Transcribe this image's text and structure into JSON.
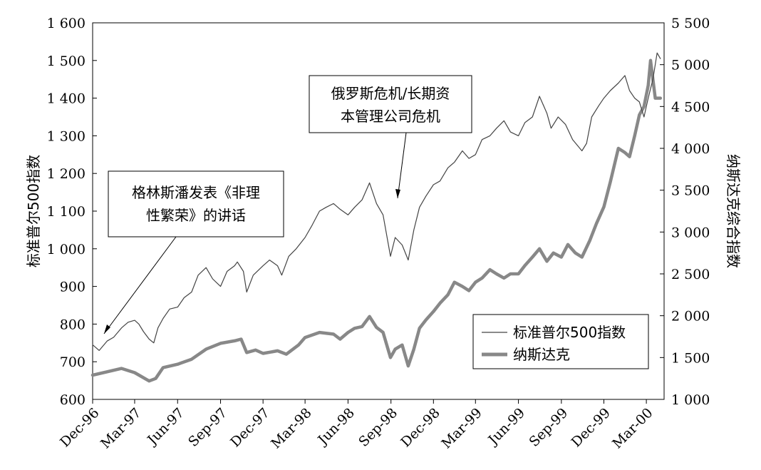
{
  "chart_data": {
    "type": "line",
    "ylabel_left": "标准普尔500指数",
    "ylabel_right": "纳斯达克综合指数",
    "y_left_range": [
      600,
      1600
    ],
    "y_right_range": [
      1000,
      5500
    ],
    "y_left_ticks": [
      "600",
      "700",
      "800",
      "900",
      "1 000",
      "1 100",
      "1 200",
      "1 300",
      "1 400",
      "1 500",
      "1 600"
    ],
    "y_right_ticks": [
      "1 000",
      "1 500",
      "2 000",
      "2 500",
      "3 000",
      "3 500",
      "4 000",
      "4 500",
      "5 000",
      "5 500"
    ],
    "x_ticks": [
      "Dec-96",
      "Mar-97",
      "Jun-97",
      "Sep-97",
      "Dec-97",
      "Mar-98",
      "Jun-98",
      "Sep-98",
      "Dec-98",
      "Mar-99",
      "Jun-99",
      "Sep-99",
      "Dec-99",
      "Mar-00"
    ],
    "legend": {
      "placement": "lower-right",
      "entries": [
        "标准普尔500指数",
        "纳斯达克"
      ]
    },
    "annotations": [
      {
        "lines": [
          "格林斯潘发表《非理",
          "性繁荣》的讲话"
        ],
        "date": "1996-12-05"
      },
      {
        "lines": [
          "俄罗斯危机/长期资",
          "本管理公司危机"
        ],
        "date": "1998-10-01"
      }
    ],
    "series": [
      {
        "name": "标准普尔500指数",
        "axis": "left",
        "x": [
          "1996-12-01",
          "1996-12-15",
          "1997-01-01",
          "1997-01-15",
          "1997-02-01",
          "1997-02-15",
          "1997-03-01",
          "1997-03-10",
          "1997-03-20",
          "1997-04-01",
          "1997-04-11",
          "1997-04-20",
          "1997-05-01",
          "1997-05-15",
          "1997-06-01",
          "1997-06-15",
          "1997-07-01",
          "1997-07-15",
          "1997-08-01",
          "1997-08-15",
          "1997-09-01",
          "1997-09-15",
          "1997-10-01",
          "1997-10-07",
          "1997-10-20",
          "1997-10-27",
          "1997-11-10",
          "1997-12-01",
          "1997-12-15",
          "1998-01-01",
          "1998-01-10",
          "1998-01-25",
          "1998-02-10",
          "1998-03-01",
          "1998-03-15",
          "1998-04-01",
          "1998-04-15",
          "1998-05-01",
          "1998-05-15",
          "1998-06-01",
          "1998-06-15",
          "1998-07-01",
          "1998-07-17",
          "1998-08-01",
          "1998-08-15",
          "1998-08-31",
          "1998-09-10",
          "1998-09-25",
          "1998-10-08",
          "1998-10-20",
          "1998-11-01",
          "1998-11-15",
          "1998-12-01",
          "1998-12-15",
          "1999-01-01",
          "1999-01-15",
          "1999-02-01",
          "1999-02-15",
          "1999-03-01",
          "1999-03-15",
          "1999-04-01",
          "1999-04-15",
          "1999-05-01",
          "1999-05-15",
          "1999-06-01",
          "1999-06-15",
          "1999-07-01",
          "1999-07-16",
          "1999-08-01",
          "1999-08-10",
          "1999-08-25",
          "1999-09-10",
          "1999-09-25",
          "1999-10-15",
          "1999-10-25",
          "1999-11-05",
          "1999-11-20",
          "1999-12-01",
          "1999-12-15",
          "2000-01-01",
          "2000-01-15",
          "2000-01-25",
          "2000-02-05",
          "2000-02-15",
          "2000-02-25",
          "2000-03-05",
          "2000-03-15",
          "2000-03-24",
          "2000-03-31"
        ],
        "values": [
          745,
          730,
          755,
          765,
          790,
          805,
          810,
          800,
          780,
          760,
          750,
          790,
          815,
          840,
          845,
          870,
          885,
          930,
          950,
          920,
          900,
          940,
          955,
          965,
          940,
          885,
          930,
          955,
          970,
          955,
          930,
          980,
          1000,
          1030,
          1060,
          1100,
          1110,
          1120,
          1105,
          1090,
          1110,
          1130,
          1175,
          1120,
          1090,
          980,
          1030,
          1010,
          970,
          1050,
          1110,
          1140,
          1170,
          1180,
          1215,
          1230,
          1260,
          1240,
          1250,
          1290,
          1300,
          1320,
          1340,
          1310,
          1300,
          1335,
          1350,
          1405,
          1360,
          1320,
          1350,
          1330,
          1290,
          1260,
          1280,
          1350,
          1380,
          1400,
          1420,
          1440,
          1460,
          1420,
          1400,
          1390,
          1350,
          1400,
          1450,
          1520,
          1505
        ]
      },
      {
        "name": "纳斯达克",
        "axis": "right",
        "x": [
          "1996-12-01",
          "1997-01-01",
          "1997-02-01",
          "1997-03-01",
          "1997-04-01",
          "1997-04-15",
          "1997-05-01",
          "1997-06-01",
          "1997-07-01",
          "1997-08-01",
          "1997-09-01",
          "1997-10-01",
          "1997-10-15",
          "1997-10-27",
          "1997-11-15",
          "1997-12-01",
          "1998-01-01",
          "1998-01-20",
          "1998-02-15",
          "1998-03-01",
          "1998-04-01",
          "1998-05-01",
          "1998-05-15",
          "1998-06-01",
          "1998-06-15",
          "1998-07-01",
          "1998-07-17",
          "1998-08-01",
          "1998-08-15",
          "1998-08-31",
          "1998-09-10",
          "1998-09-25",
          "1998-10-08",
          "1998-10-20",
          "1998-11-01",
          "1998-11-15",
          "1998-12-01",
          "1998-12-15",
          "1999-01-01",
          "1999-01-15",
          "1999-02-01",
          "1999-02-15",
          "1999-03-01",
          "1999-03-15",
          "1999-04-01",
          "1999-04-15",
          "1999-05-01",
          "1999-05-15",
          "1999-06-01",
          "1999-06-15",
          "1999-07-01",
          "1999-07-16",
          "1999-08-01",
          "1999-08-15",
          "1999-09-01",
          "1999-09-15",
          "1999-10-01",
          "1999-10-15",
          "1999-11-01",
          "1999-11-15",
          "1999-12-01",
          "1999-12-15",
          "2000-01-01",
          "2000-01-15",
          "2000-01-25",
          "2000-02-05",
          "2000-02-15",
          "2000-02-25",
          "2000-03-05",
          "2000-03-10",
          "2000-03-20",
          "2000-03-31"
        ],
        "values": [
          1290,
          1330,
          1370,
          1320,
          1220,
          1250,
          1380,
          1420,
          1480,
          1600,
          1670,
          1700,
          1720,
          1560,
          1590,
          1550,
          1580,
          1540,
          1650,
          1740,
          1800,
          1780,
          1720,
          1800,
          1850,
          1870,
          1990,
          1860,
          1800,
          1500,
          1600,
          1650,
          1400,
          1600,
          1850,
          1950,
          2050,
          2150,
          2250,
          2400,
          2350,
          2300,
          2400,
          2450,
          2550,
          2500,
          2450,
          2500,
          2500,
          2600,
          2700,
          2800,
          2650,
          2750,
          2700,
          2850,
          2750,
          2700,
          2900,
          3100,
          3300,
          3600,
          4000,
          3950,
          3900,
          4150,
          4400,
          4500,
          4750,
          5050,
          4600,
          4600
        ]
      }
    ]
  }
}
